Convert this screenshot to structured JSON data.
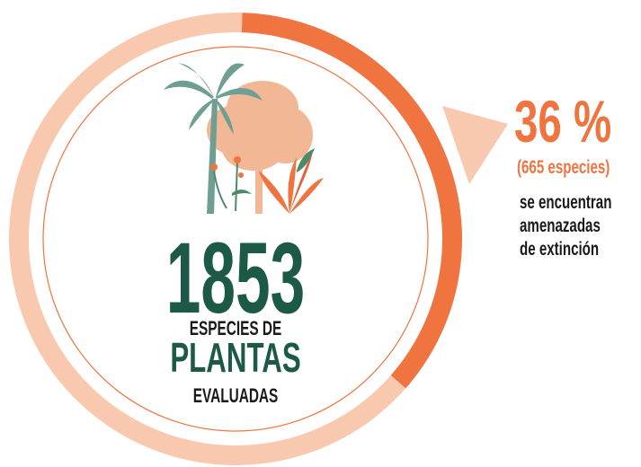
{
  "chart_data": {
    "type": "donut",
    "categories": [
      "amenazadas",
      null
    ],
    "values": [
      36,
      64
    ],
    "value_labels": [
      "36 %",
      null
    ],
    "colors": [
      "#ef7440",
      "#f8c9ae"
    ],
    "total": "1853",
    "total_lines": [
      "ESPECIES DE",
      "PLANTAS",
      "EVALUADAS"
    ],
    "count_label": "(665 especies)",
    "note_lines": [
      "se encuentran",
      "amenazadas",
      "de extinción"
    ]
  }
}
